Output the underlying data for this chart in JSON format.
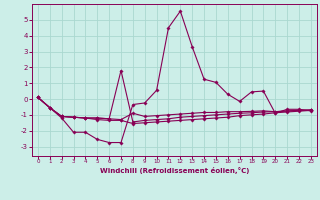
{
  "xlabel": "Windchill (Refroidissement éolien,°C)",
  "background_color": "#cceee8",
  "grid_color": "#aad8d0",
  "line_color": "#880055",
  "xlim": [
    -0.5,
    23.5
  ],
  "ylim": [
    -3.6,
    6.0
  ],
  "xticks": [
    0,
    1,
    2,
    3,
    4,
    5,
    6,
    7,
    8,
    9,
    10,
    11,
    12,
    13,
    14,
    15,
    16,
    17,
    18,
    19,
    20,
    21,
    22,
    23
  ],
  "yticks": [
    -3,
    -2,
    -1,
    0,
    1,
    2,
    3,
    4,
    5
  ],
  "series": [
    {
      "x": [
        0,
        1,
        2,
        3,
        4,
        5,
        6,
        7,
        8,
        9,
        10,
        11,
        12,
        13,
        14,
        15,
        16,
        17,
        18,
        19,
        20,
        21,
        22,
        23
      ],
      "y": [
        0.1,
        -0.55,
        -1.2,
        -2.1,
        -2.1,
        -2.55,
        -2.75,
        -2.75,
        -0.35,
        -0.25,
        0.55,
        4.5,
        5.55,
        3.3,
        1.25,
        1.05,
        0.3,
        -0.15,
        0.45,
        0.5,
        -0.9,
        -0.65,
        -0.65,
        -0.75
      ]
    },
    {
      "x": [
        0,
        1,
        2,
        3,
        4,
        5,
        6,
        7,
        8,
        9,
        10,
        11,
        12,
        13,
        14,
        15,
        16,
        17,
        18,
        19,
        20,
        21,
        22,
        23
      ],
      "y": [
        0.1,
        -0.55,
        -1.1,
        -1.15,
        -1.2,
        -1.2,
        -1.25,
        -1.3,
        -0.9,
        -1.1,
        -1.05,
        -1.0,
        -0.95,
        -0.9,
        -0.85,
        -0.85,
        -0.8,
        -0.8,
        -0.78,
        -0.75,
        -0.8,
        -0.75,
        -0.72,
        -0.7
      ]
    },
    {
      "x": [
        0,
        1,
        2,
        3,
        4,
        5,
        6,
        7,
        8,
        9,
        10,
        11,
        12,
        13,
        14,
        15,
        16,
        17,
        18,
        19,
        20,
        21,
        22,
        23
      ],
      "y": [
        0.1,
        -0.55,
        -1.1,
        -1.15,
        -1.2,
        -1.2,
        -1.25,
        1.8,
        -1.45,
        -1.35,
        -1.3,
        -1.25,
        -1.15,
        -1.1,
        -1.05,
        -1.0,
        -0.95,
        -0.9,
        -0.87,
        -0.82,
        -0.8,
        -0.76,
        -0.72,
        -0.68
      ]
    },
    {
      "x": [
        0,
        1,
        2,
        3,
        4,
        5,
        6,
        7,
        8,
        9,
        10,
        11,
        12,
        13,
        14,
        15,
        16,
        17,
        18,
        19,
        20,
        21,
        22,
        23
      ],
      "y": [
        0.1,
        -0.55,
        -1.1,
        -1.15,
        -1.2,
        -1.3,
        -1.35,
        -1.35,
        -1.55,
        -1.5,
        -1.45,
        -1.4,
        -1.35,
        -1.3,
        -1.25,
        -1.2,
        -1.15,
        -1.05,
        -1.0,
        -0.95,
        -0.87,
        -0.82,
        -0.77,
        -0.72
      ]
    }
  ]
}
